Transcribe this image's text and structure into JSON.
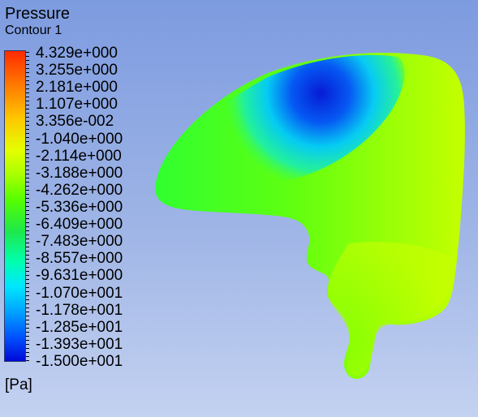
{
  "legend": {
    "title": "Pressure",
    "subtitle": "Contour 1",
    "unit": "[Pa]",
    "labels": [
      "4.329e+000",
      "3.255e+000",
      "2.181e+000",
      "1.107e+000",
      "3.356e-002",
      "-1.040e+000",
      "-2.114e+000",
      "-3.188e+000",
      "-4.262e+000",
      "-5.336e+000",
      "-6.409e+000",
      "-7.483e+000",
      "-8.557e+000",
      "-9.631e+000",
      "-1.070e+001",
      "-1.178e+001",
      "-1.285e+001",
      "-1.393e+001",
      "-1.500e+001"
    ]
  },
  "colors": {
    "background_top": "#7d9be0",
    "background_bottom": "#c4d2f1",
    "contour_high": "#ff2a00",
    "contour_mid": "#a8ff00",
    "contour_low": "#0008d8"
  }
}
